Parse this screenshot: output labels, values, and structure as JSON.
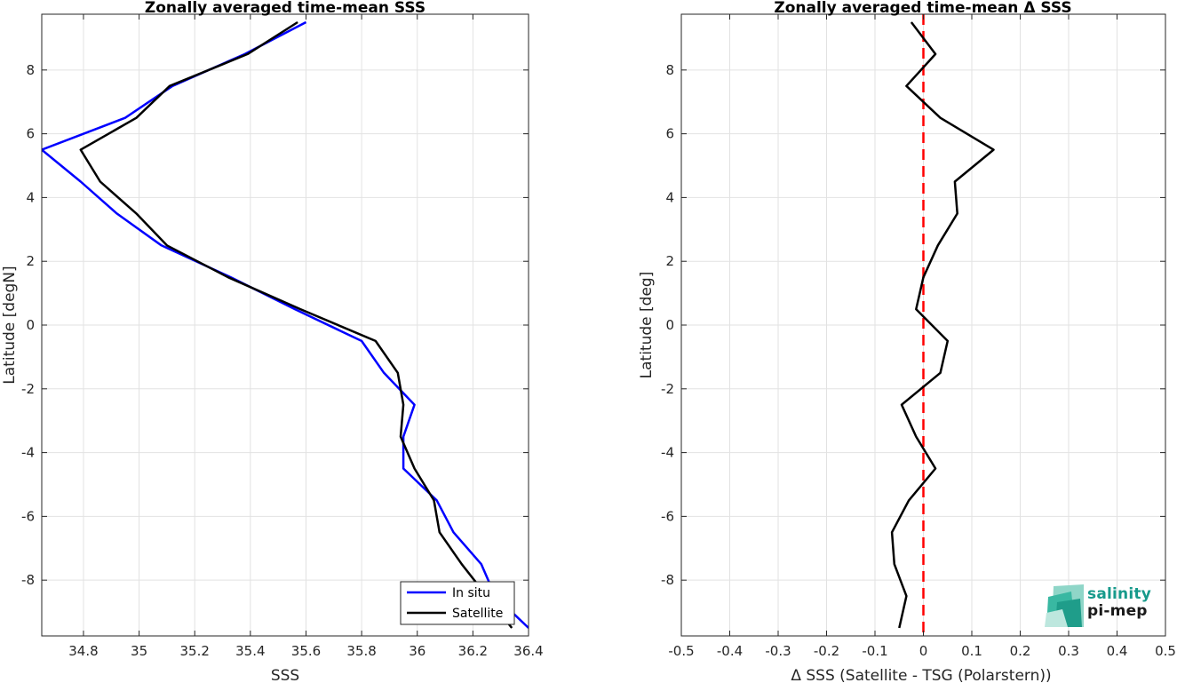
{
  "chart_data": [
    {
      "type": "line",
      "title": "Zonally averaged time-mean SSS",
      "xlabel": "SSS",
      "ylabel": "Latitude [degN]",
      "xlim": [
        34.65,
        36.4
      ],
      "ylim": [
        -9.75,
        9.75
      ],
      "xticks": [
        "34.8",
        "35",
        "35.2",
        "35.4",
        "35.6",
        "35.8",
        "36",
        "36.2",
        "36.4"
      ],
      "yticks": [
        "-8",
        "-6",
        "-4",
        "-2",
        "0",
        "2",
        "4",
        "6",
        "8"
      ],
      "grid": true,
      "legend_position": "bottom-right",
      "series": [
        {
          "name": "In situ",
          "color": "#0000ff",
          "points": [
            [
              35.6,
              9.5
            ],
            [
              35.38,
              8.5
            ],
            [
              35.12,
              7.5
            ],
            [
              34.95,
              6.5
            ],
            [
              34.65,
              5.5
            ],
            [
              34.79,
              4.5
            ],
            [
              34.92,
              3.5
            ],
            [
              35.08,
              2.5
            ],
            [
              35.33,
              1.5
            ],
            [
              35.56,
              0.5
            ],
            [
              35.8,
              -0.5
            ],
            [
              35.88,
              -1.5
            ],
            [
              35.99,
              -2.5
            ],
            [
              35.95,
              -3.5
            ],
            [
              35.95,
              -4.5
            ],
            [
              36.07,
              -5.5
            ],
            [
              36.13,
              -6.5
            ],
            [
              36.23,
              -7.5
            ],
            [
              36.28,
              -8.5
            ],
            [
              36.4,
              -9.5
            ]
          ]
        },
        {
          "name": "Satellite",
          "color": "#000000",
          "points": [
            [
              35.57,
              9.5
            ],
            [
              35.39,
              8.5
            ],
            [
              35.11,
              7.5
            ],
            [
              34.99,
              6.5
            ],
            [
              34.79,
              5.5
            ],
            [
              34.86,
              4.5
            ],
            [
              34.99,
              3.5
            ],
            [
              35.1,
              2.5
            ],
            [
              35.32,
              1.5
            ],
            [
              35.58,
              0.5
            ],
            [
              35.85,
              -0.5
            ],
            [
              35.93,
              -1.5
            ],
            [
              35.95,
              -2.5
            ],
            [
              35.94,
              -3.5
            ],
            [
              35.99,
              -4.5
            ],
            [
              36.06,
              -5.5
            ],
            [
              36.08,
              -6.5
            ],
            [
              36.16,
              -7.5
            ],
            [
              36.25,
              -8.5
            ],
            [
              36.34,
              -9.5
            ]
          ]
        }
      ]
    },
    {
      "type": "line",
      "title": "Zonally averaged time-mean Δ SSS",
      "xlabel": "Δ SSS (Satellite - TSG (Polarstern))",
      "ylabel": "Latitude [deg]",
      "xlim": [
        -0.5,
        0.5
      ],
      "ylim": [
        -9.75,
        9.75
      ],
      "xticks": [
        "-0.5",
        "-0.4",
        "-0.3",
        "-0.2",
        "-0.1",
        "0",
        "0.1",
        "0.2",
        "0.3",
        "0.4",
        "0.5"
      ],
      "yticks": [
        "-8",
        "-6",
        "-4",
        "-2",
        "0",
        "2",
        "4",
        "6",
        "8"
      ],
      "grid": true,
      "reference_line": {
        "x": 0,
        "color": "#ff0000",
        "style": "dashed"
      },
      "series": [
        {
          "name": "",
          "color": "#000000",
          "points": [
            [
              -0.025,
              9.5
            ],
            [
              0.025,
              8.5
            ],
            [
              -0.035,
              7.5
            ],
            [
              0.035,
              6.5
            ],
            [
              0.145,
              5.5
            ],
            [
              0.065,
              4.5
            ],
            [
              0.07,
              3.5
            ],
            [
              0.03,
              2.5
            ],
            [
              0.0,
              1.5
            ],
            [
              -0.015,
              0.5
            ],
            [
              0.05,
              -0.5
            ],
            [
              0.035,
              -1.5
            ],
            [
              -0.045,
              -2.5
            ],
            [
              -0.015,
              -3.5
            ],
            [
              0.025,
              -4.5
            ],
            [
              -0.03,
              -5.5
            ],
            [
              -0.065,
              -6.5
            ],
            [
              -0.06,
              -7.5
            ],
            [
              -0.035,
              -8.5
            ],
            [
              -0.05,
              -9.5
            ]
          ]
        }
      ]
    }
  ],
  "logo": {
    "line1": "salinity",
    "line2": "pi-mep",
    "accent": "#179a8b"
  }
}
